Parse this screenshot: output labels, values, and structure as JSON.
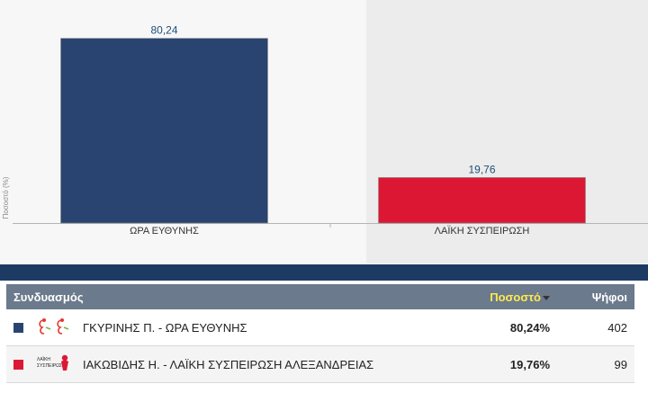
{
  "chart_data": {
    "type": "bar",
    "categories": [
      "ΩΡΑ ΕΥΘΥΝΗΣ",
      "ΛΑΪΚΗ ΣΥΣΠΕΙΡΩΣΗ"
    ],
    "values": [
      80.24,
      19.76
    ],
    "value_labels": [
      "80,24",
      "19,76"
    ],
    "colors": [
      "#2a4471",
      "#dc1733"
    ],
    "ylabel": "Ποσοστό (%)",
    "ylim": [
      0,
      100
    ],
    "grid": false
  },
  "table": {
    "headers": {
      "name": "Συνδυασμός",
      "pct": "Ποσοστό",
      "votes": "Ψήφοι"
    },
    "rows": [
      {
        "swatch_color": "#2a4471",
        "logo": "ora-euthynis-logo",
        "name": "ΓΚΥΡΙΝΗΣ Π. - ΩΡΑ ΕΥΘΥΝΗΣ",
        "pct": "80,24%",
        "votes": "402"
      },
      {
        "swatch_color": "#dc1733",
        "logo": "laiki-syspeirosi-logo",
        "logo_text": "ΛΑΪΚΗ ΣΥΣΠΕΙΡΩΣΗ",
        "name": "ΙΑΚΩΒΙΔΗΣ Η. - ΛΑΪΚΗ ΣΥΣΠΕΙΡΩΣΗ ΑΛΕΞΑΝΔΡΕΙΑΣ",
        "pct": "19,76%",
        "votes": "99"
      }
    ]
  }
}
